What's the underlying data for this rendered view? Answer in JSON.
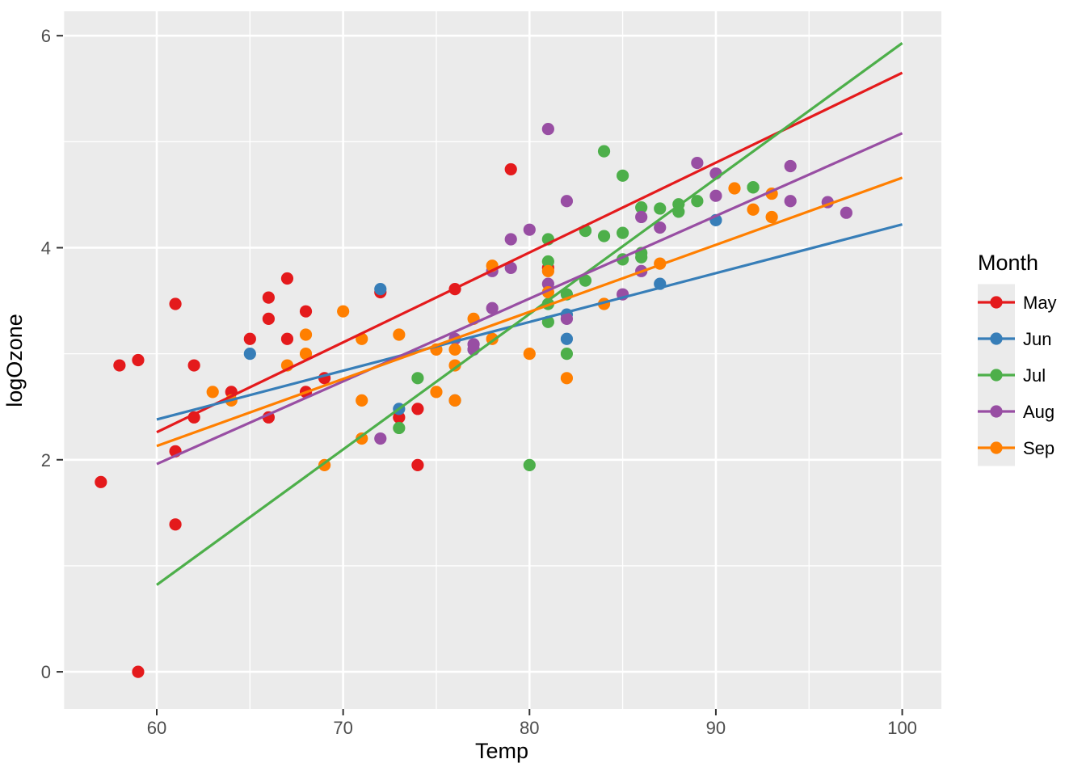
{
  "figure": {
    "background": "#FFFFFF"
  },
  "chart_data": {
    "type": "scatter",
    "title": "",
    "xlabel": "Temp",
    "ylabel": "logOzone",
    "xlim": [
      54.97,
      102.1
    ],
    "ylim": [
      -0.35,
      6.23
    ],
    "x_ticks": [
      60,
      70,
      80,
      90,
      100
    ],
    "x_minor_ticks": [
      55,
      65,
      75,
      85,
      95
    ],
    "y_ticks": [
      0,
      2,
      4,
      6
    ],
    "y_minor_ticks": [
      1,
      3,
      5
    ],
    "grid": "on",
    "legend_position": "right",
    "legend_title": "Month",
    "panel_background": "#EBEBEB",
    "grid_color": "#FFFFFF",
    "tick_mark_color": "#333333",
    "tick_label_color": "#4D4D4D",
    "point_radius": 7.6,
    "line_width": 3.2,
    "series": [
      {
        "name": "May",
        "color": "#E41A1C",
        "points": [
          [
            67,
            3.71
          ],
          [
            72,
            3.58
          ],
          [
            74,
            2.48
          ],
          [
            62,
            2.89
          ],
          [
            66,
            3.33
          ],
          [
            65,
            3.14
          ],
          [
            59,
            2.94
          ],
          [
            61,
            2.08
          ],
          [
            74,
            1.95
          ],
          [
            69,
            2.77
          ],
          [
            66,
            2.4
          ],
          [
            68,
            2.64
          ],
          [
            58,
            2.89
          ],
          [
            64,
            2.64
          ],
          [
            66,
            3.53
          ],
          [
            57,
            1.79
          ],
          [
            68,
            3.4
          ],
          [
            62,
            2.4
          ],
          [
            59,
            0.0
          ],
          [
            73,
            2.4
          ],
          [
            61,
            1.39
          ],
          [
            61,
            3.47
          ],
          [
            67,
            3.14
          ],
          [
            81,
            3.81
          ],
          [
            79,
            4.74
          ],
          [
            76,
            3.61
          ]
        ],
        "trend_line": {
          "x": [
            60,
            100
          ],
          "y": [
            2.26,
            5.65
          ]
        }
      },
      {
        "name": "Jun",
        "color": "#377EB8",
        "points": [
          [
            82,
            3.37
          ],
          [
            90,
            4.26
          ],
          [
            87,
            3.66
          ],
          [
            82,
            3.14
          ],
          [
            77,
            3.04
          ],
          [
            72,
            3.61
          ],
          [
            65,
            3.0
          ],
          [
            73,
            2.48
          ],
          [
            76,
            2.56
          ]
        ],
        "trend_line": {
          "x": [
            60,
            100
          ],
          "y": [
            2.38,
            4.22
          ]
        }
      },
      {
        "name": "Jul",
        "color": "#4DAF4A",
        "points": [
          [
            84,
            4.91
          ],
          [
            85,
            3.89
          ],
          [
            81,
            3.47
          ],
          [
            83,
            4.16
          ],
          [
            83,
            3.69
          ],
          [
            88,
            4.34
          ],
          [
            92,
            4.57
          ],
          [
            92,
            4.57
          ],
          [
            89,
            4.44
          ],
          [
            73,
            2.3
          ],
          [
            81,
            3.3
          ],
          [
            80,
            1.95
          ],
          [
            81,
            3.87
          ],
          [
            82,
            3.56
          ],
          [
            84,
            4.11
          ],
          [
            87,
            4.37
          ],
          [
            85,
            4.14
          ],
          [
            74,
            2.77
          ],
          [
            86,
            4.38
          ],
          [
            85,
            4.68
          ],
          [
            82,
            3.0
          ],
          [
            86,
            3.95
          ],
          [
            88,
            4.41
          ],
          [
            86,
            3.91
          ],
          [
            83,
            4.16
          ],
          [
            81,
            4.08
          ]
        ],
        "trend_line": {
          "x": [
            60,
            100
          ],
          "y": [
            0.82,
            5.93
          ]
        }
      },
      {
        "name": "Aug",
        "color": "#984EA3",
        "points": [
          [
            82,
            4.44
          ],
          [
            85,
            3.56
          ],
          [
            87,
            4.19
          ],
          [
            89,
            4.8
          ],
          [
            90,
            4.49
          ],
          [
            90,
            4.7
          ],
          [
            86,
            3.78
          ],
          [
            82,
            3.33
          ],
          [
            80,
            4.17
          ],
          [
            77,
            3.09
          ],
          [
            79,
            4.08
          ],
          [
            76,
            3.14
          ],
          [
            78,
            3.43
          ],
          [
            78,
            3.78
          ],
          [
            77,
            3.04
          ],
          [
            72,
            2.2
          ],
          [
            79,
            3.81
          ],
          [
            81,
            5.12
          ],
          [
            86,
            4.29
          ],
          [
            97,
            4.33
          ],
          [
            94,
            4.77
          ],
          [
            96,
            4.43
          ],
          [
            94,
            4.44
          ],
          [
            81,
            3.66
          ]
        ],
        "trend_line": {
          "x": [
            60,
            100
          ],
          "y": [
            1.96,
            5.08
          ]
        }
      },
      {
        "name": "Sep",
        "color": "#FF7F00",
        "points": [
          [
            91,
            4.56
          ],
          [
            92,
            4.36
          ],
          [
            93,
            4.29
          ],
          [
            93,
            4.51
          ],
          [
            87,
            3.85
          ],
          [
            84,
            3.47
          ],
          [
            80,
            3.0
          ],
          [
            78,
            3.14
          ],
          [
            75,
            3.04
          ],
          [
            73,
            3.18
          ],
          [
            81,
            3.78
          ],
          [
            76,
            3.04
          ],
          [
            77,
            3.33
          ],
          [
            71,
            2.2
          ],
          [
            71,
            2.56
          ],
          [
            78,
            3.83
          ],
          [
            67,
            2.89
          ],
          [
            76,
            2.56
          ],
          [
            68,
            3.18
          ],
          [
            82,
            2.77
          ],
          [
            64,
            2.56
          ],
          [
            71,
            3.14
          ],
          [
            81,
            3.58
          ],
          [
            69,
            1.95
          ],
          [
            63,
            2.64
          ],
          [
            70,
            3.4
          ],
          [
            75,
            2.64
          ],
          [
            76,
            2.89
          ],
          [
            68,
            3.0
          ]
        ],
        "trend_line": {
          "x": [
            60,
            100
          ],
          "y": [
            2.13,
            4.66
          ]
        }
      }
    ]
  }
}
